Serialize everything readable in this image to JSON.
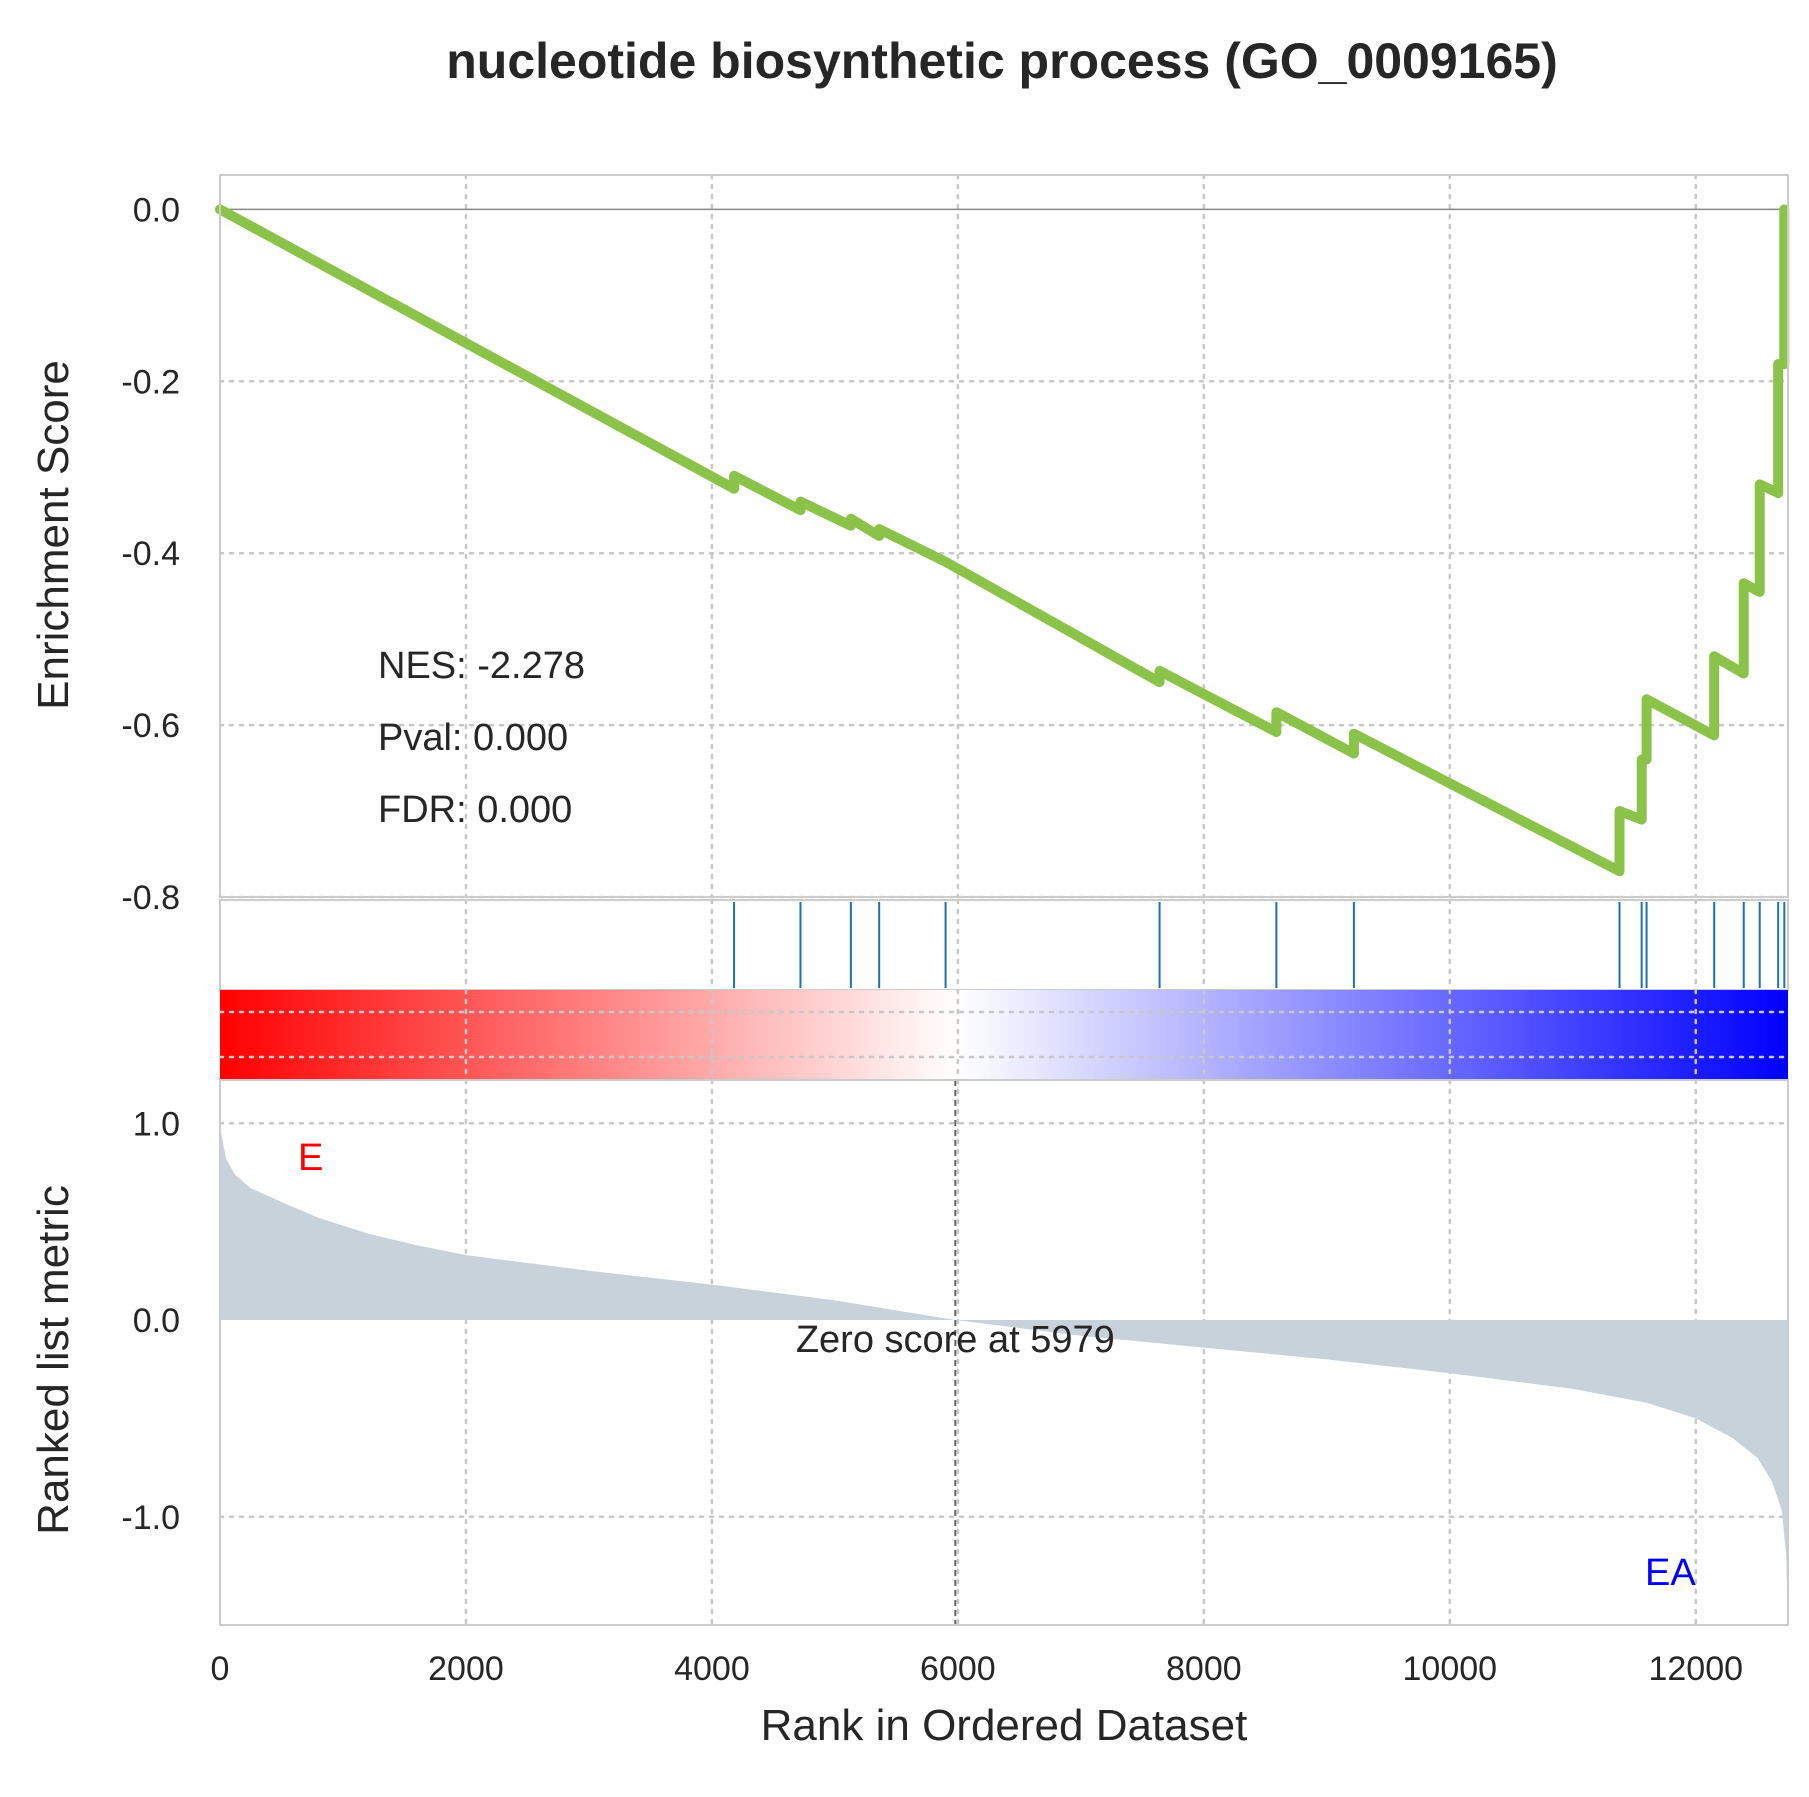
{
  "chart_data": {
    "type": "line",
    "title": "nucleotide biosynthetic process (GO_0009165)",
    "xlabel": "Rank in Ordered Dataset",
    "xlim": [
      0,
      12750
    ],
    "x_ticks": [
      "0",
      "2000",
      "4000",
      "6000",
      "8000",
      "10000",
      "12000"
    ],
    "grid": true,
    "enrichment_panel": {
      "ylabel": "Enrichment Score",
      "ylim": [
        -0.8,
        0.04
      ],
      "y_ticks": [
        {
          "value": 0.0,
          "label": "0.0"
        },
        {
          "value": -0.2,
          "label": "-0.2"
        },
        {
          "value": -0.4,
          "label": "-0.4"
        },
        {
          "value": -0.6,
          "label": "-0.6"
        },
        {
          "value": -0.8,
          "label": "-0.8"
        }
      ],
      "color": "#8bc34a",
      "points": [
        [
          0,
          0.0
        ],
        [
          4180,
          -0.325
        ],
        [
          4180,
          -0.31
        ],
        [
          4720,
          -0.35
        ],
        [
          4720,
          -0.34
        ],
        [
          5130,
          -0.368
        ],
        [
          5130,
          -0.36
        ],
        [
          5360,
          -0.38
        ],
        [
          5360,
          -0.372
        ],
        [
          5900,
          -0.41
        ],
        [
          7640,
          -0.55
        ],
        [
          7640,
          -0.537
        ],
        [
          8590,
          -0.608
        ],
        [
          8590,
          -0.585
        ],
        [
          9220,
          -0.633
        ],
        [
          9220,
          -0.61
        ],
        [
          11380,
          -0.77
        ],
        [
          11380,
          -0.7
        ],
        [
          11560,
          -0.71
        ],
        [
          11560,
          -0.64
        ],
        [
          11600,
          -0.64
        ],
        [
          11600,
          -0.57
        ],
        [
          12150,
          -0.612
        ],
        [
          12150,
          -0.52
        ],
        [
          12390,
          -0.54
        ],
        [
          12390,
          -0.435
        ],
        [
          12520,
          -0.445
        ],
        [
          12520,
          -0.32
        ],
        [
          12670,
          -0.33
        ],
        [
          12670,
          -0.18
        ],
        [
          12720,
          -0.18
        ],
        [
          12720,
          0.0
        ]
      ],
      "annotations": {
        "nes": "NES: -2.278",
        "pval": "Pval: 0.000",
        "fdr": "FDR: 0.000"
      }
    },
    "hit_positions": [
      4180,
      4720,
      5130,
      5360,
      5900,
      7640,
      8590,
      9220,
      11380,
      11560,
      11600,
      12150,
      12390,
      12520,
      12670,
      12720
    ],
    "hit_color": "#1f6fb4",
    "colorbar": {
      "colors": [
        "#ff0000",
        "#ffffff",
        "#0000ff"
      ]
    },
    "ranked_panel": {
      "ylabel": "Ranked list metric",
      "ylim": [
        -1.55,
        1.22
      ],
      "y_ticks": [
        {
          "value": 1.0,
          "label": "1.0"
        },
        {
          "value": 0.0,
          "label": "0.0"
        },
        {
          "value": -1.0,
          "label": "-1.0"
        }
      ],
      "fill_color": "#c8d2da",
      "zero_cross": 5979,
      "zero_label": "Zero score at 5979",
      "pos_label": "E",
      "pos_label_color": "#ff0000",
      "neg_label": "EA",
      "neg_label_color": "#0000ff",
      "profile": [
        [
          0,
          1.2
        ],
        [
          10,
          0.95
        ],
        [
          50,
          0.82
        ],
        [
          120,
          0.74
        ],
        [
          250,
          0.67
        ],
        [
          500,
          0.6
        ],
        [
          800,
          0.52
        ],
        [
          1200,
          0.44
        ],
        [
          1600,
          0.38
        ],
        [
          2000,
          0.33
        ],
        [
          3000,
          0.25
        ],
        [
          4000,
          0.18
        ],
        [
          5000,
          0.1
        ],
        [
          5979,
          0.0
        ],
        [
          7000,
          -0.08
        ],
        [
          8000,
          -0.14
        ],
        [
          9000,
          -0.2
        ],
        [
          10000,
          -0.27
        ],
        [
          11000,
          -0.35
        ],
        [
          11600,
          -0.42
        ],
        [
          12000,
          -0.5
        ],
        [
          12300,
          -0.6
        ],
        [
          12500,
          -0.7
        ],
        [
          12620,
          -0.82
        ],
        [
          12700,
          -0.97
        ],
        [
          12735,
          -1.2
        ],
        [
          12750,
          -1.55
        ]
      ]
    }
  }
}
